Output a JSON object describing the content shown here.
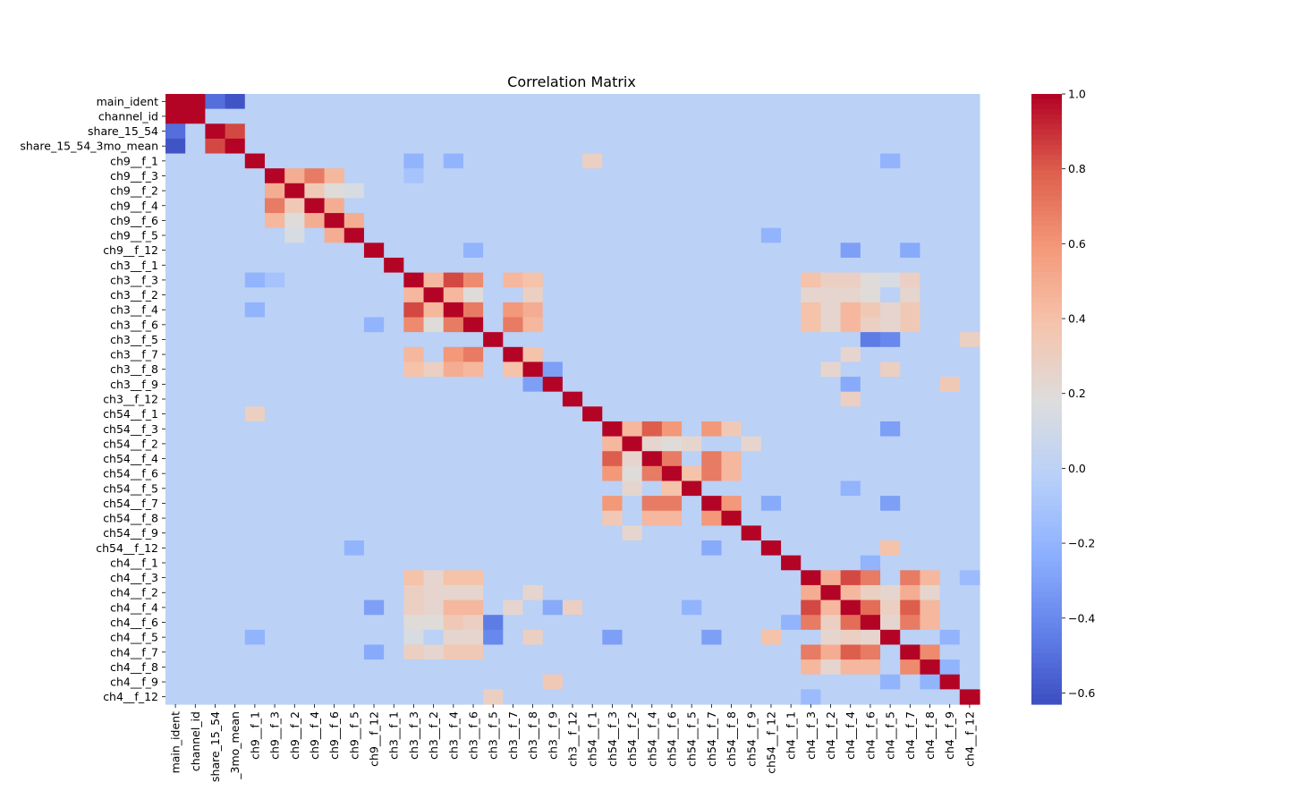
{
  "chart_data": {
    "type": "heatmap",
    "title": "Correlation Matrix",
    "labels": [
      "main_ident",
      "channel_id",
      "share_15_54",
      "share_15_54_3mo_mean",
      "ch9__f_1",
      "ch9__f_3",
      "ch9__f_2",
      "ch9__f_4",
      "ch9__f_6",
      "ch9__f_5",
      "ch9__f_12",
      "ch3__f_1",
      "ch3__f_3",
      "ch3__f_2",
      "ch3__f_4",
      "ch3__f_6",
      "ch3__f_5",
      "ch3__f_7",
      "ch3__f_8",
      "ch3__f_9",
      "ch3__f_12",
      "ch54__f_1",
      "ch54__f_3",
      "ch54__f_2",
      "ch54__f_4",
      "ch54__f_6",
      "ch54__f_5",
      "ch54__f_7",
      "ch54__f_8",
      "ch54__f_9",
      "ch54__f_12",
      "ch4__f_1",
      "ch4__f_3",
      "ch4__f_2",
      "ch4__f_4",
      "ch4__f_6",
      "ch4__f_5",
      "ch4__f_7",
      "ch4__f_8",
      "ch4__f_9",
      "ch4__f_12"
    ],
    "x_tick_labels": [
      "main_ident",
      "channel_id",
      "share_15_54",
      "_3mo_mean",
      "ch9__f_1",
      "ch9__f_3",
      "ch9__f_2",
      "ch9__f_4",
      "ch9__f_6",
      "ch9__f_5",
      "ch9__f_12",
      "ch3__f_1",
      "ch3__f_3",
      "ch3__f_2",
      "ch3__f_4",
      "ch3__f_6",
      "ch3__f_5",
      "ch3__f_7",
      "ch3__f_8",
      "ch3__f_9",
      "ch3__f_12",
      "ch54__f_1",
      "ch54__f_3",
      "ch54__f_2",
      "ch54__f_4",
      "ch54__f_6",
      "ch54__f_5",
      "ch54__f_7",
      "ch54__f_8",
      "ch54__f_9",
      "ch54__f_12",
      "ch4__f_1",
      "ch4__f_3",
      "ch4__f_2",
      "ch4__f_4",
      "ch4__f_6",
      "ch4__f_5",
      "ch4__f_7",
      "ch4__f_8",
      "ch4__f_9",
      "ch4__f_12"
    ],
    "colormap": "coolwarm",
    "vmin": -0.63,
    "vmax": 1.0,
    "colorbar_ticks": [
      "1.0",
      "0.8",
      "0.6",
      "0.4",
      "0.2",
      "0.0",
      "−0.2",
      "−0.4",
      "−0.6"
    ],
    "colorbar_tick_values": [
      1.0,
      0.8,
      0.6,
      0.4,
      0.2,
      0.0,
      -0.2,
      -0.4,
      -0.6
    ],
    "background_value": 0.0,
    "cells": [
      [
        0,
        1,
        1.0
      ],
      [
        0,
        2,
        -0.5
      ],
      [
        0,
        3,
        -0.6
      ],
      [
        2,
        3,
        0.85
      ],
      [
        4,
        21,
        0.3
      ],
      [
        5,
        6,
        0.5
      ],
      [
        5,
        7,
        0.7
      ],
      [
        5,
        8,
        0.45
      ],
      [
        6,
        7,
        0.35
      ],
      [
        6,
        8,
        0.2
      ],
      [
        6,
        9,
        0.15
      ],
      [
        7,
        8,
        0.5
      ],
      [
        8,
        9,
        0.5
      ],
      [
        12,
        13,
        0.45
      ],
      [
        12,
        14,
        0.85
      ],
      [
        12,
        15,
        0.65
      ],
      [
        12,
        17,
        0.45
      ],
      [
        12,
        18,
        0.4
      ],
      [
        13,
        14,
        0.45
      ],
      [
        13,
        15,
        0.2
      ],
      [
        13,
        18,
        0.3
      ],
      [
        14,
        15,
        0.7
      ],
      [
        14,
        17,
        0.6
      ],
      [
        14,
        18,
        0.5
      ],
      [
        15,
        17,
        0.7
      ],
      [
        15,
        18,
        0.45
      ],
      [
        17,
        18,
        0.4
      ],
      [
        12,
        32,
        0.4
      ],
      [
        12,
        33,
        0.3
      ],
      [
        12,
        34,
        0.3
      ],
      [
        12,
        35,
        0.2
      ],
      [
        12,
        36,
        0.15
      ],
      [
        12,
        37,
        0.3
      ],
      [
        13,
        32,
        0.25
      ],
      [
        13,
        33,
        0.25
      ],
      [
        13,
        34,
        0.25
      ],
      [
        13,
        35,
        0.2
      ],
      [
        13,
        37,
        0.25
      ],
      [
        14,
        32,
        0.4
      ],
      [
        14,
        33,
        0.25
      ],
      [
        14,
        34,
        0.45
      ],
      [
        14,
        35,
        0.35
      ],
      [
        14,
        36,
        0.25
      ],
      [
        14,
        37,
        0.35
      ],
      [
        15,
        32,
        0.4
      ],
      [
        15,
        33,
        0.25
      ],
      [
        15,
        34,
        0.45
      ],
      [
        15,
        35,
        0.3
      ],
      [
        15,
        36,
        0.25
      ],
      [
        15,
        37,
        0.35
      ],
      [
        16,
        36,
        -0.4
      ],
      [
        16,
        40,
        0.3
      ],
      [
        17,
        34,
        0.25
      ],
      [
        18,
        33,
        0.25
      ],
      [
        18,
        36,
        0.3
      ],
      [
        19,
        39,
        0.35
      ],
      [
        20,
        34,
        0.3
      ],
      [
        22,
        23,
        0.45
      ],
      [
        22,
        24,
        0.8
      ],
      [
        22,
        25,
        0.6
      ],
      [
        22,
        27,
        0.6
      ],
      [
        22,
        28,
        0.35
      ],
      [
        23,
        24,
        0.25
      ],
      [
        23,
        25,
        0.2
      ],
      [
        23,
        26,
        0.25
      ],
      [
        23,
        29,
        0.25
      ],
      [
        24,
        25,
        0.7
      ],
      [
        24,
        27,
        0.7
      ],
      [
        24,
        28,
        0.45
      ],
      [
        25,
        26,
        0.4
      ],
      [
        25,
        27,
        0.7
      ],
      [
        25,
        28,
        0.45
      ],
      [
        27,
        28,
        0.6
      ],
      [
        30,
        36,
        0.4
      ],
      [
        32,
        33,
        0.5
      ],
      [
        32,
        34,
        0.85
      ],
      [
        32,
        35,
        0.7
      ],
      [
        32,
        37,
        0.7
      ],
      [
        32,
        38,
        0.45
      ],
      [
        33,
        34,
        0.45
      ],
      [
        33,
        35,
        0.3
      ],
      [
        33,
        36,
        0.25
      ],
      [
        33,
        37,
        0.5
      ],
      [
        33,
        38,
        0.25
      ],
      [
        34,
        35,
        0.75
      ],
      [
        34,
        36,
        0.3
      ],
      [
        34,
        37,
        0.8
      ],
      [
        34,
        38,
        0.45
      ],
      [
        35,
        36,
        0.25
      ],
      [
        35,
        37,
        0.7
      ],
      [
        35,
        38,
        0.45
      ],
      [
        37,
        38,
        0.65
      ],
      [
        38,
        39,
        -0.2
      ],
      [
        5,
        12,
        -0.1
      ],
      [
        4,
        12,
        -0.2
      ],
      [
        4,
        14,
        -0.2
      ],
      [
        4,
        36,
        -0.2
      ],
      [
        10,
        15,
        -0.2
      ],
      [
        10,
        34,
        -0.3
      ],
      [
        10,
        37,
        -0.25
      ],
      [
        16,
        35,
        -0.45
      ],
      [
        26,
        34,
        -0.2
      ],
      [
        27,
        36,
        -0.3
      ],
      [
        31,
        35,
        -0.2
      ],
      [
        36,
        39,
        -0.2
      ],
      [
        22,
        36,
        -0.3
      ],
      [
        18,
        19,
        -0.3
      ],
      [
        19,
        34,
        -0.25
      ],
      [
        9,
        30,
        -0.2
      ],
      [
        27,
        30,
        -0.25
      ],
      [
        32,
        40,
        -0.15
      ]
    ]
  }
}
